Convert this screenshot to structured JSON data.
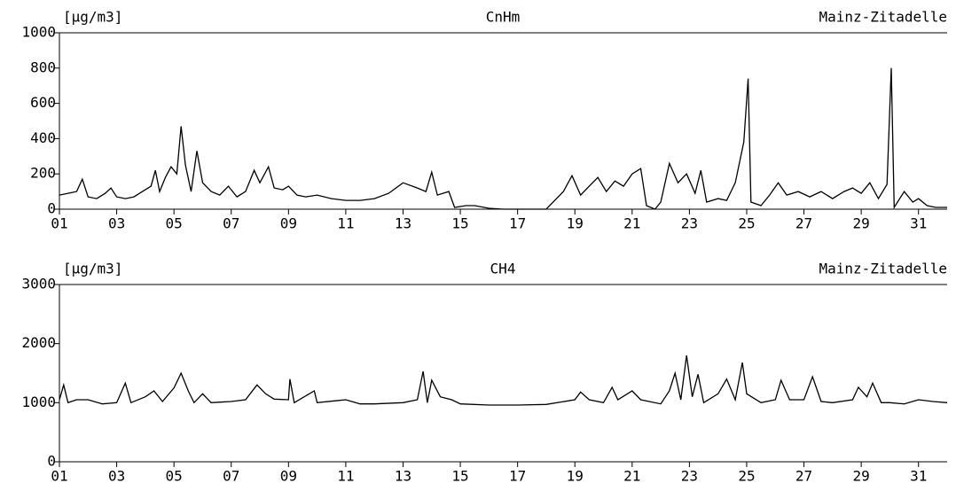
{
  "chart_data": [
    {
      "type": "line",
      "title": "CnHm",
      "ylabel": "[µg/m3]",
      "location": "Mainz-Zitadelle",
      "color": "#000000",
      "xlim": [
        1,
        32
      ],
      "ylim": [
        0,
        1000
      ],
      "xticks": [
        {
          "value": 1,
          "label": "01"
        },
        {
          "value": 3,
          "label": "03"
        },
        {
          "value": 5,
          "label": "05"
        },
        {
          "value": 7,
          "label": "07"
        },
        {
          "value": 9,
          "label": "09"
        },
        {
          "value": 11,
          "label": "11"
        },
        {
          "value": 13,
          "label": "13"
        },
        {
          "value": 15,
          "label": "15"
        },
        {
          "value": 17,
          "label": "17"
        },
        {
          "value": 19,
          "label": "19"
        },
        {
          "value": 21,
          "label": "21"
        },
        {
          "value": 23,
          "label": "23"
        },
        {
          "value": 25,
          "label": "25"
        },
        {
          "value": 27,
          "label": "27"
        },
        {
          "value": 29,
          "label": "29"
        },
        {
          "value": 31,
          "label": "31"
        }
      ],
      "yticks": [
        0,
        200,
        400,
        600,
        800,
        1000
      ],
      "x": [
        1,
        1.3,
        1.6,
        1.8,
        2.0,
        2.3,
        2.6,
        2.8,
        3.0,
        3.3,
        3.6,
        3.9,
        4.2,
        4.35,
        4.5,
        4.7,
        4.9,
        5.1,
        5.25,
        5.4,
        5.6,
        5.8,
        6.0,
        6.3,
        6.6,
        6.9,
        7.2,
        7.5,
        7.8,
        8.0,
        8.3,
        8.5,
        8.8,
        9.0,
        9.3,
        9.6,
        10,
        10.5,
        11,
        11.5,
        12,
        12.5,
        13,
        13.5,
        13.8,
        14.0,
        14.2,
        14.6,
        14.8,
        15.2,
        15.5,
        16,
        16.5,
        17,
        18,
        18.3,
        18.6,
        18.9,
        19.2,
        19.5,
        19.8,
        20.1,
        20.4,
        20.7,
        21,
        21.3,
        21.5,
        21.8,
        22,
        22.3,
        22.6,
        22.9,
        23.2,
        23.4,
        23.6,
        24,
        24.3,
        24.6,
        24.9,
        25.05,
        25.15,
        25.5,
        25.8,
        26.1,
        26.4,
        26.8,
        27.2,
        27.6,
        28,
        28.4,
        28.7,
        29,
        29.3,
        29.6,
        29.9,
        30.05,
        30.15,
        30.5,
        30.8,
        31,
        31.3,
        31.6,
        32
      ],
      "values": [
        80,
        90,
        100,
        170,
        70,
        60,
        90,
        120,
        70,
        60,
        70,
        100,
        130,
        220,
        100,
        180,
        240,
        200,
        470,
        250,
        100,
        330,
        150,
        100,
        80,
        130,
        70,
        100,
        220,
        150,
        240,
        120,
        110,
        130,
        80,
        70,
        80,
        60,
        50,
        50,
        60,
        90,
        150,
        120,
        100,
        210,
        80,
        100,
        10,
        20,
        20,
        5,
        0,
        0,
        0,
        50,
        100,
        190,
        80,
        130,
        180,
        100,
        160,
        130,
        200,
        230,
        20,
        0,
        40,
        260,
        150,
        200,
        90,
        220,
        40,
        60,
        50,
        150,
        380,
        740,
        40,
        20,
        80,
        150,
        80,
        100,
        70,
        100,
        60,
        100,
        120,
        90,
        150,
        60,
        140,
        800,
        10,
        100,
        40,
        60,
        20,
        10,
        10
      ]
    },
    {
      "type": "line",
      "title": "CH4",
      "ylabel": "[µg/m3]",
      "location": "Mainz-Zitadelle",
      "color": "#000000",
      "xlim": [
        1,
        32
      ],
      "ylim": [
        0,
        3000
      ],
      "xticks": [
        {
          "value": 1,
          "label": "01"
        },
        {
          "value": 3,
          "label": "03"
        },
        {
          "value": 5,
          "label": "05"
        },
        {
          "value": 7,
          "label": "07"
        },
        {
          "value": 9,
          "label": "09"
        },
        {
          "value": 11,
          "label": "11"
        },
        {
          "value": 13,
          "label": "13"
        },
        {
          "value": 15,
          "label": "15"
        },
        {
          "value": 17,
          "label": "17"
        },
        {
          "value": 19,
          "label": "19"
        },
        {
          "value": 21,
          "label": "21"
        },
        {
          "value": 23,
          "label": "23"
        },
        {
          "value": 25,
          "label": "25"
        },
        {
          "value": 27,
          "label": "27"
        },
        {
          "value": 29,
          "label": "29"
        },
        {
          "value": 31,
          "label": "31"
        }
      ],
      "yticks": [
        0,
        1000,
        2000,
        3000
      ],
      "x": [
        1,
        1.15,
        1.3,
        1.6,
        2,
        2.5,
        3,
        3.3,
        3.5,
        4,
        4.3,
        4.6,
        5,
        5.25,
        5.5,
        5.7,
        6,
        6.3,
        7,
        7.5,
        7.9,
        8.2,
        8.5,
        9,
        9.05,
        9.2,
        9.9,
        10,
        11,
        11.5,
        12,
        13,
        13.5,
        13.7,
        13.85,
        14,
        14.3,
        14.7,
        15,
        16,
        17,
        18,
        19,
        19.2,
        19.5,
        20,
        20.3,
        20.5,
        21,
        21.3,
        22,
        22.3,
        22.5,
        22.7,
        22.9,
        23.1,
        23.3,
        23.5,
        24,
        24.3,
        24.6,
        24.85,
        25,
        25.5,
        26,
        26.2,
        26.5,
        27,
        27.3,
        27.6,
        28,
        28.7,
        28.9,
        29.2,
        29.4,
        29.7,
        30,
        30.5,
        31,
        31.5,
        32
      ],
      "values": [
        1050,
        1300,
        1000,
        1050,
        1050,
        980,
        1000,
        1330,
        1000,
        1100,
        1200,
        1020,
        1250,
        1500,
        1200,
        1000,
        1150,
        1000,
        1020,
        1050,
        1300,
        1150,
        1060,
        1050,
        1400,
        1000,
        1200,
        1000,
        1050,
        980,
        980,
        1000,
        1050,
        1530,
        1000,
        1380,
        1100,
        1050,
        980,
        960,
        960,
        970,
        1050,
        1180,
        1050,
        1000,
        1260,
        1050,
        1200,
        1050,
        980,
        1200,
        1500,
        1050,
        1800,
        1100,
        1480,
        1000,
        1150,
        1400,
        1050,
        1680,
        1150,
        1000,
        1050,
        1380,
        1050,
        1050,
        1440,
        1020,
        1000,
        1050,
        1260,
        1100,
        1330,
        1000,
        1000,
        980,
        1050,
        1020,
        1000
      ]
    }
  ]
}
